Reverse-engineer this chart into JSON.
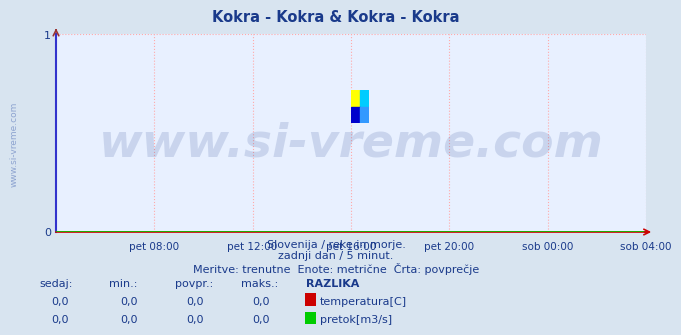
{
  "title": "Kokra - Kokra & Kokra - Kokra",
  "title_color": "#1a3a8b",
  "title_fontsize": 10.5,
  "bg_color": "#d8e4f0",
  "plot_bg_color": "#e8f0ff",
  "grid_color": "#ffaaaa",
  "grid_linestyle": ":",
  "left_spine_color": "#3333cc",
  "bottom_spine_color": "#cc0000",
  "ytick_arrow_color": "#993333",
  "tick_color": "#1a3a8b",
  "watermark_text": "www.si-vreme.com",
  "watermark_color": "#1a3a8b",
  "watermark_alpha": 0.15,
  "watermark_fontsize": 34,
  "sidebar_text": "www.si-vreme.com",
  "sidebar_color": "#3355aa",
  "sidebar_alpha": 0.45,
  "sidebar_fontsize": 6.5,
  "ylim": [
    0,
    1
  ],
  "yticks": [
    0,
    1
  ],
  "xlim": [
    0,
    288
  ],
  "xtick_positions": [
    48,
    96,
    144,
    192,
    240,
    288
  ],
  "xtick_labels": [
    "pet 08:00",
    "pet 12:00",
    "pet 16:00",
    "pet 20:00",
    "sob 00:00",
    "sob 04:00"
  ],
  "subtitle_lines": [
    "Slovenija / reke in morje.",
    "zadnji dan / 5 minut.",
    "Meritve: trenutne  Enote: metrične  Črta: povprečje"
  ],
  "subtitle_color": "#1a3a8b",
  "subtitle_fontsize": 8,
  "table_header": [
    "sedaj:",
    "min.:",
    "povpr.:",
    "maks.:",
    "RAZLIKA"
  ],
  "table_rows": [
    [
      "0,0",
      "0,0",
      "0,0",
      "0,0",
      "temperatura[C]",
      "#cc0000"
    ],
    [
      "0,0",
      "0,0",
      "0,0",
      "0,0",
      "pretok[m3/s]",
      "#00cc00"
    ]
  ],
  "table_color": "#1a3a8b",
  "table_fontsize": 8,
  "data_line1_color": "#cc0000",
  "data_line2_color": "#00cc00",
  "icon_colors": [
    "#ffff00",
    "#00ccff",
    "#0000cc",
    "#3399ff"
  ]
}
